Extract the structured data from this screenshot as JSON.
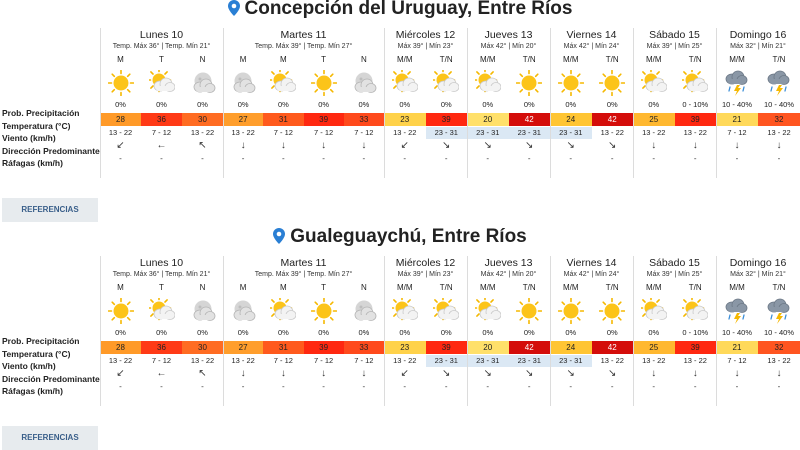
{
  "section_labels": {
    "precip": "Prob. Precipitación",
    "temp": "Temperatura (°C)",
    "wind": "Viento (km/h)",
    "direction": "Dirección Predominante",
    "gusts": "Ráfagas (km/h)"
  },
  "references_label": "REFERENCIAS",
  "colors": {
    "23": "#ffd24a",
    "24": "#ffc533",
    "25": "#ffb830",
    "26": "#ffab2e",
    "27": "#ff9e2c",
    "28": "#ff9a28",
    "30": "#ff6c22",
    "31": "#ff5a1d",
    "32": "#ff5520",
    "33": "#ff4a1c",
    "36": "#ff3a16",
    "39": "#ff2810",
    "42": "#d40d0a",
    "20": "#ffe06a",
    "21": "#ffd95a",
    "wind_highlight": "#dbe8f4",
    "pin": "#2a7fd4"
  },
  "locations": [
    {
      "name": "Concepción del Uruguay, Entre Ríos",
      "days": [
        {
          "name": "Lunes 10",
          "meta": "Temp. Máx 36° | Temp. Mín 21°",
          "slots": [
            {
              "label": "M",
              "icon": "sun-icon",
              "prob": "0%",
              "temp": "28",
              "wind": "13 - 22",
              "dir": "↙",
              "gust": "-"
            },
            {
              "label": "T",
              "icon": "sun-cloud-icon",
              "prob": "0%",
              "temp": "36",
              "wind": "7 - 12",
              "dir": "←",
              "gust": "-"
            },
            {
              "label": "N",
              "icon": "cloud-moon-icon",
              "prob": "0%",
              "temp": "30",
              "wind": "13 - 22",
              "dir": "↖",
              "gust": "-"
            }
          ]
        },
        {
          "name": "Martes 11",
          "meta": "Temp. Máx 39° | Temp. Mín 27°",
          "slots": [
            {
              "label": "M",
              "icon": "cloud-moon-icon",
              "prob": "0%",
              "temp": "27",
              "wind": "13 - 22",
              "dir": "↓",
              "gust": "-"
            },
            {
              "label": "M",
              "icon": "sun-cloud-icon",
              "prob": "0%",
              "temp": "31",
              "wind": "7 - 12",
              "dir": "↓",
              "gust": "-"
            },
            {
              "label": "T",
              "icon": "sun-icon",
              "prob": "0%",
              "temp": "39",
              "wind": "7 - 12",
              "dir": "↓",
              "gust": "-"
            },
            {
              "label": "N",
              "icon": "cloud-moon-icon",
              "prob": "0%",
              "temp": "33",
              "wind": "7 - 12",
              "dir": "↓",
              "gust": "-"
            }
          ]
        },
        {
          "name": "Miércoles 12",
          "meta": "Máx 39° | Mín 23°",
          "slots": [
            {
              "label": "M/M",
              "icon": "sun-cloud-icon",
              "prob": "0%",
              "temp": "23",
              "wind": "13 - 22",
              "dir": "↙",
              "gust": "-"
            },
            {
              "label": "T/N",
              "icon": "sun-cloud-icon",
              "prob": "0%",
              "temp": "39",
              "wind": "23 - 31",
              "dir": "↘",
              "gust": "-",
              "hl": true
            }
          ]
        },
        {
          "name": "Jueves 13",
          "meta": "Máx 42° | Mín 20°",
          "slots": [
            {
              "label": "M/M",
              "icon": "sun-cloud-icon",
              "prob": "0%",
              "temp": "20",
              "wind": "23 - 31",
              "dir": "↘",
              "gust": "-",
              "hl": true
            },
            {
              "label": "T/N",
              "icon": "sun-icon",
              "prob": "0%",
              "temp": "42",
              "wind": "23 - 31",
              "dir": "↘",
              "gust": "-",
              "hl": true
            }
          ]
        },
        {
          "name": "Viernes 14",
          "meta": "Máx 42° | Mín 24°",
          "slots": [
            {
              "label": "M/M",
              "icon": "sun-icon",
              "prob": "0%",
              "temp": "24",
              "wind": "23 - 31",
              "dir": "↘",
              "gust": "-",
              "hl": true
            },
            {
              "label": "T/N",
              "icon": "sun-icon",
              "prob": "0%",
              "temp": "42",
              "wind": "13 - 22",
              "dir": "↘",
              "gust": "-"
            }
          ]
        },
        {
          "name": "Sábado 15",
          "meta": "Máx 39° | Mín 25°",
          "slots": [
            {
              "label": "M/M",
              "icon": "sun-cloud-icon",
              "prob": "0%",
              "temp": "25",
              "wind": "13 - 22",
              "dir": "↓",
              "gust": "-"
            },
            {
              "label": "T/N",
              "icon": "sun-cloud-icon",
              "prob": "0 - 10%",
              "temp": "39",
              "wind": "13 - 22",
              "dir": "↓",
              "gust": "-"
            }
          ]
        },
        {
          "name": "Domingo 16",
          "meta": "Máx 32° | Mín 21°",
          "slots": [
            {
              "label": "M/M",
              "icon": "storm-icon",
              "prob": "10 - 40%",
              "temp": "21",
              "wind": "7 - 12",
              "dir": "↓",
              "gust": "-"
            },
            {
              "label": "T/N",
              "icon": "storm-icon",
              "prob": "10 - 40%",
              "temp": "32",
              "wind": "13 - 22",
              "dir": "↓",
              "gust": "-"
            }
          ]
        }
      ]
    },
    {
      "name": "Gualeguaychú, Entre Ríos",
      "days": [
        {
          "name": "Lunes 10",
          "meta": "Temp. Máx 36° | Temp. Mín 21°",
          "slots": [
            {
              "label": "M",
              "icon": "sun-icon",
              "prob": "0%",
              "temp": "28",
              "wind": "13 - 22",
              "dir": "↙",
              "gust": "-"
            },
            {
              "label": "T",
              "icon": "sun-cloud-icon",
              "prob": "0%",
              "temp": "36",
              "wind": "7 - 12",
              "dir": "←",
              "gust": "-"
            },
            {
              "label": "N",
              "icon": "cloud-moon-icon",
              "prob": "0%",
              "temp": "30",
              "wind": "13 - 22",
              "dir": "↖",
              "gust": "-"
            }
          ]
        },
        {
          "name": "Martes 11",
          "meta": "Temp. Máx 39° | Temp. Mín 27°",
          "slots": [
            {
              "label": "M",
              "icon": "cloud-moon-icon",
              "prob": "0%",
              "temp": "27",
              "wind": "13 - 22",
              "dir": "↓",
              "gust": "-"
            },
            {
              "label": "M",
              "icon": "sun-cloud-icon",
              "prob": "0%",
              "temp": "31",
              "wind": "7 - 12",
              "dir": "↓",
              "gust": "-"
            },
            {
              "label": "T",
              "icon": "sun-icon",
              "prob": "0%",
              "temp": "39",
              "wind": "7 - 12",
              "dir": "↓",
              "gust": "-"
            },
            {
              "label": "N",
              "icon": "cloud-moon-icon",
              "prob": "0%",
              "temp": "33",
              "wind": "7 - 12",
              "dir": "↓",
              "gust": "-"
            }
          ]
        },
        {
          "name": "Miércoles 12",
          "meta": "Máx 39° | Mín 23°",
          "slots": [
            {
              "label": "M/M",
              "icon": "sun-cloud-icon",
              "prob": "0%",
              "temp": "23",
              "wind": "13 - 22",
              "dir": "↙",
              "gust": "-"
            },
            {
              "label": "T/N",
              "icon": "sun-cloud-icon",
              "prob": "0%",
              "temp": "39",
              "wind": "23 - 31",
              "dir": "↘",
              "gust": "-",
              "hl": true
            }
          ]
        },
        {
          "name": "Jueves 13",
          "meta": "Máx 42° | Mín 20°",
          "slots": [
            {
              "label": "M/M",
              "icon": "sun-cloud-icon",
              "prob": "0%",
              "temp": "20",
              "wind": "23 - 31",
              "dir": "↘",
              "gust": "-",
              "hl": true
            },
            {
              "label": "T/N",
              "icon": "sun-icon",
              "prob": "0%",
              "temp": "42",
              "wind": "23 - 31",
              "dir": "↘",
              "gust": "-",
              "hl": true
            }
          ]
        },
        {
          "name": "Viernes 14",
          "meta": "Máx 42° | Mín 24°",
          "slots": [
            {
              "label": "M/M",
              "icon": "sun-icon",
              "prob": "0%",
              "temp": "24",
              "wind": "23 - 31",
              "dir": "↘",
              "gust": "-",
              "hl": true
            },
            {
              "label": "T/N",
              "icon": "sun-icon",
              "prob": "0%",
              "temp": "42",
              "wind": "13 - 22",
              "dir": "↘",
              "gust": "-"
            }
          ]
        },
        {
          "name": "Sábado 15",
          "meta": "Máx 39° | Mín 25°",
          "slots": [
            {
              "label": "M/M",
              "icon": "sun-cloud-icon",
              "prob": "0%",
              "temp": "25",
              "wind": "13 - 22",
              "dir": "↓",
              "gust": "-"
            },
            {
              "label": "T/N",
              "icon": "sun-cloud-icon",
              "prob": "0 - 10%",
              "temp": "39",
              "wind": "13 - 22",
              "dir": "↓",
              "gust": "-"
            }
          ]
        },
        {
          "name": "Domingo 16",
          "meta": "Máx 32° | Mín 21°",
          "slots": [
            {
              "label": "M/M",
              "icon": "storm-icon",
              "prob": "10 - 40%",
              "temp": "21",
              "wind": "7 - 12",
              "dir": "↓",
              "gust": "-"
            },
            {
              "label": "T/N",
              "icon": "storm-icon",
              "prob": "10 - 40%",
              "temp": "32",
              "wind": "13 - 22",
              "dir": "↓",
              "gust": "-"
            }
          ]
        }
      ]
    }
  ]
}
